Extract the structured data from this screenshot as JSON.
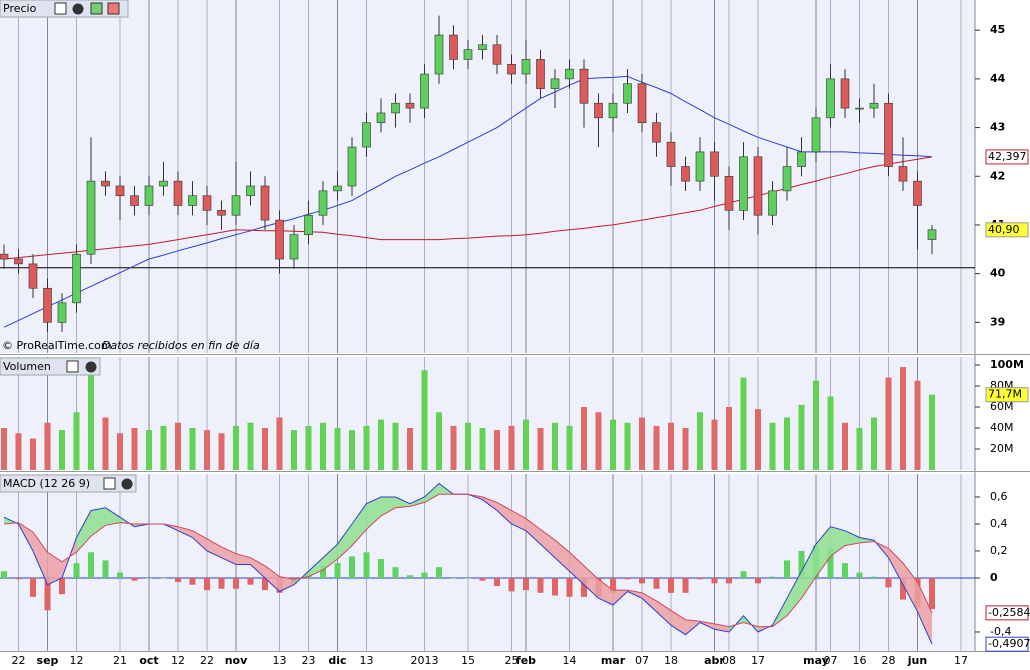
{
  "chart_data": [
    {
      "type": "candlestick",
      "title": "Precio",
      "note": "© ProRealTime.com",
      "subnote": "Datos recibidos en fin de día",
      "ylim": [
        38.37,
        45.62
      ],
      "yticks": [
        39,
        40,
        41,
        42,
        43,
        44,
        45
      ],
      "hline": 40.12,
      "up_color": "#5ccf5c",
      "down_color": "#dd5a5a",
      "open": [
        40.4,
        40.3,
        40.2,
        39.7,
        39.0,
        39.4,
        40.4,
        41.9,
        41.8,
        41.6,
        41.4,
        41.8,
        41.9,
        41.4,
        41.6,
        41.3,
        41.2,
        41.6,
        41.8,
        41.1,
        40.3,
        40.8,
        41.2,
        41.7,
        41.8,
        42.6,
        43.1,
        43.3,
        43.5,
        43.4,
        44.1,
        44.9,
        44.4,
        44.6,
        44.7,
        44.3,
        44.1,
        44.4,
        43.8,
        44.0,
        44.2,
        43.5,
        43.2,
        43.5,
        43.9,
        43.1,
        42.7,
        42.2,
        41.9,
        42.5,
        42.0,
        41.3,
        42.4,
        41.2,
        41.7,
        42.2,
        42.5,
        43.2,
        44.0,
        43.4,
        43.4,
        43.5,
        42.2,
        41.9,
        40.7
      ],
      "high": [
        40.6,
        40.5,
        40.4,
        39.9,
        39.6,
        40.6,
        42.8,
        42.1,
        42.0,
        41.8,
        42.0,
        42.3,
        42.1,
        41.9,
        41.8,
        41.5,
        42.3,
        42.1,
        42.0,
        41.3,
        41.0,
        41.5,
        41.9,
        42.1,
        42.8,
        43.3,
        43.6,
        43.7,
        43.7,
        44.3,
        45.3,
        45.1,
        44.8,
        44.9,
        44.9,
        44.5,
        44.8,
        44.6,
        44.2,
        44.4,
        44.4,
        43.7,
        43.7,
        44.2,
        44.1,
        43.3,
        42.9,
        42.4,
        42.8,
        42.7,
        42.2,
        42.7,
        42.6,
        41.9,
        42.6,
        42.8,
        43.4,
        44.3,
        44.2,
        43.6,
        43.9,
        43.7,
        42.8,
        42.1,
        41.0
      ],
      "low": [
        40.1,
        40.0,
        39.5,
        38.8,
        38.8,
        39.2,
        40.2,
        41.6,
        41.1,
        41.2,
        41.2,
        41.6,
        41.2,
        41.2,
        41.0,
        40.9,
        41.0,
        41.4,
        40.9,
        40.0,
        40.1,
        40.6,
        41.0,
        41.5,
        41.6,
        42.4,
        42.9,
        43.0,
        43.1,
        43.2,
        43.9,
        44.2,
        44.2,
        44.4,
        44.1,
        43.9,
        43.9,
        43.6,
        43.4,
        43.8,
        43.0,
        42.6,
        42.9,
        43.3,
        42.9,
        42.4,
        41.8,
        41.7,
        41.7,
        41.5,
        40.9,
        41.1,
        40.8,
        41.0,
        41.5,
        42.0,
        42.3,
        43.0,
        43.2,
        43.1,
        43.2,
        42.0,
        41.7,
        40.5,
        40.4
      ],
      "close": [
        40.3,
        40.2,
        39.7,
        39.0,
        39.4,
        40.4,
        41.9,
        41.8,
        41.6,
        41.4,
        41.8,
        41.9,
        41.4,
        41.6,
        41.3,
        41.2,
        41.6,
        41.8,
        41.1,
        40.3,
        40.8,
        41.2,
        41.7,
        41.8,
        42.6,
        43.1,
        43.3,
        43.5,
        43.4,
        44.1,
        44.9,
        44.4,
        44.6,
        44.7,
        44.3,
        44.1,
        44.4,
        43.8,
        44.0,
        44.2,
        43.5,
        43.2,
        43.5,
        43.9,
        43.1,
        42.7,
        42.2,
        41.9,
        42.5,
        42.0,
        41.3,
        42.4,
        41.2,
        41.7,
        42.2,
        42.5,
        43.2,
        44.0,
        43.4,
        43.4,
        43.5,
        42.2,
        41.9,
        41.4,
        40.9
      ],
      "lines": [
        {
          "color": "#2e3fcf",
          "values": [
            38.9,
            39.04,
            39.18,
            39.32,
            39.46,
            39.6,
            39.74,
            39.88,
            40.02,
            40.16,
            40.3,
            40.38,
            40.47,
            40.55,
            40.63,
            40.72,
            40.8,
            40.88,
            40.97,
            41.05,
            41.13,
            41.22,
            41.3,
            41.4,
            41.5,
            41.67,
            41.83,
            42.0,
            42.13,
            42.27,
            42.4,
            42.55,
            42.7,
            42.85,
            43.0,
            43.2,
            43.4,
            43.6,
            43.73,
            43.87,
            44.0,
            44.02,
            44.03,
            44.05,
            43.93,
            43.82,
            43.7,
            43.53,
            43.37,
            43.2,
            43.07,
            42.93,
            42.8,
            42.7,
            42.6,
            42.5,
            42.5,
            42.5,
            42.5,
            42.48,
            42.47,
            42.45,
            42.43,
            42.42,
            42.4
          ]
        },
        {
          "color": "#c41a2e",
          "values": [
            40.3,
            40.33,
            40.36,
            40.39,
            40.42,
            40.45,
            40.48,
            40.51,
            40.54,
            40.57,
            40.6,
            40.65,
            40.7,
            40.75,
            40.8,
            40.85,
            40.9,
            40.89,
            40.88,
            40.88,
            40.87,
            40.86,
            40.85,
            40.81,
            40.78,
            40.74,
            40.7,
            40.7,
            40.7,
            40.7,
            40.7,
            40.72,
            40.73,
            40.75,
            40.77,
            40.78,
            40.8,
            40.83,
            40.87,
            40.9,
            40.93,
            40.97,
            41.0,
            41.05,
            41.1,
            41.15,
            41.2,
            41.25,
            41.3,
            41.38,
            41.45,
            41.53,
            41.6,
            41.68,
            41.75,
            41.83,
            41.9,
            41.98,
            42.05,
            42.13,
            42.2,
            42.25,
            42.3,
            42.35,
            42.397
          ]
        }
      ],
      "end_labels": [
        {
          "value": 42.397,
          "label": "42,397",
          "color": "#c41a2e",
          "bg": "#ffffff"
        },
        {
          "value": 40.9,
          "label": "40,90",
          "color": "#000000",
          "bg": "#ffff33"
        }
      ]
    },
    {
      "type": "bar",
      "title": "Volumen",
      "ylim": [
        0,
        107.6
      ],
      "yticks": [
        {
          "value": 20,
          "label": "20M"
        },
        {
          "value": 40,
          "label": "40M"
        },
        {
          "value": 60,
          "label": "60M"
        },
        {
          "value": 80,
          "label": "80M"
        },
        {
          "value": 100,
          "label": "100M"
        }
      ],
      "up_color": "#62d252",
      "down_color": "#e06a6a",
      "values": [
        40,
        35,
        30,
        45,
        38,
        55,
        90,
        50,
        35,
        40,
        38,
        42,
        45,
        40,
        38,
        35,
        42,
        45,
        40,
        50,
        38,
        42,
        45,
        40,
        38,
        42,
        48,
        45,
        40,
        95,
        55,
        42,
        45,
        40,
        38,
        42,
        48,
        40,
        45,
        42,
        60,
        55,
        48,
        45,
        50,
        42,
        45,
        40,
        55,
        48,
        60,
        88,
        58,
        45,
        50,
        62,
        85,
        70,
        45,
        40,
        50,
        88,
        98,
        85,
        71.7
      ],
      "end_labels": [
        {
          "value": 71.7,
          "label": "71,7M",
          "color": "#000000",
          "bg": "#ffff33"
        }
      ]
    },
    {
      "type": "macd",
      "title": "MACD (12 26 9)",
      "ylim": [
        -0.541,
        0.77
      ],
      "yticks": [
        {
          "value": 0.6,
          "label": "0,6"
        },
        {
          "value": 0.4,
          "label": "0,4"
        },
        {
          "value": 0.2,
          "label": "0,2"
        },
        0,
        {
          "value": -0.4,
          "label": "-0,4"
        }
      ],
      "categories": [
        null,
        "22",
        null,
        "sep",
        null,
        "12",
        null,
        null,
        "21",
        null,
        "oct",
        null,
        "12",
        null,
        "22",
        null,
        "nov",
        null,
        null,
        "13",
        null,
        "23",
        null,
        "dic",
        null,
        "13",
        null,
        null,
        null,
        "2013",
        null,
        null,
        "15",
        null,
        null,
        "25",
        "feb",
        null,
        null,
        "14",
        null,
        null,
        "mar",
        null,
        "07",
        null,
        "18",
        null,
        null,
        "abr",
        "08",
        null,
        "17",
        null,
        null,
        null,
        "may",
        "07",
        null,
        "16",
        null,
        "28",
        null,
        "jun",
        null,
        null,
        "17"
      ],
      "series": [
        {
          "color": "#2e3fcf",
          "values": [
            0.45,
            0.4,
            0.2,
            -0.05,
            0.0,
            0.3,
            0.5,
            0.52,
            0.45,
            0.38,
            0.4,
            0.4,
            0.35,
            0.3,
            0.2,
            0.15,
            0.1,
            0.1,
            0.0,
            -0.1,
            -0.05,
            0.05,
            0.15,
            0.25,
            0.4,
            0.55,
            0.6,
            0.6,
            0.55,
            0.6,
            0.7,
            0.62,
            0.62,
            0.58,
            0.5,
            0.4,
            0.35,
            0.25,
            0.15,
            0.05,
            -0.05,
            -0.15,
            -0.2,
            -0.1,
            -0.15,
            -0.25,
            -0.35,
            -0.42,
            -0.33,
            -0.38,
            -0.4,
            -0.28,
            -0.4,
            -0.35,
            -0.15,
            0.05,
            0.25,
            0.38,
            0.35,
            0.3,
            0.28,
            0.15,
            -0.05,
            -0.25,
            -0.4907,
            null,
            null
          ]
        },
        {
          "color": "#d0485a",
          "values": [
            0.4,
            0.41,
            0.34,
            0.19,
            0.12,
            0.19,
            0.31,
            0.39,
            0.41,
            0.4,
            0.4,
            0.4,
            0.38,
            0.35,
            0.29,
            0.23,
            0.18,
            0.15,
            0.09,
            0.01,
            -0.01,
            0.01,
            0.06,
            0.14,
            0.24,
            0.36,
            0.46,
            0.52,
            0.53,
            0.56,
            0.62,
            0.62,
            0.62,
            0.6,
            0.56,
            0.5,
            0.44,
            0.36,
            0.28,
            0.19,
            0.09,
            -0.01,
            -0.09,
            -0.09,
            -0.11,
            -0.17,
            -0.24,
            -0.31,
            -0.32,
            -0.34,
            -0.36,
            -0.33,
            -0.36,
            -0.36,
            -0.28,
            -0.15,
            0.01,
            0.16,
            0.24,
            0.26,
            0.27,
            0.22,
            0.11,
            -0.03,
            -0.2584,
            null,
            null
          ]
        }
      ],
      "histogram": [
        0.05,
        -0.01,
        -0.14,
        -0.24,
        -0.12,
        0.11,
        0.19,
        0.13,
        0.04,
        -0.02,
        0.0,
        0.0,
        -0.03,
        -0.05,
        -0.09,
        -0.08,
        -0.08,
        -0.05,
        -0.09,
        -0.11,
        -0.04,
        0.04,
        0.09,
        0.11,
        0.16,
        0.19,
        0.14,
        0.08,
        0.02,
        0.04,
        0.08,
        0.0,
        0.0,
        -0.02,
        -0.06,
        -0.1,
        -0.09,
        -0.11,
        -0.13,
        -0.14,
        -0.14,
        -0.14,
        -0.11,
        -0.01,
        -0.04,
        -0.08,
        -0.11,
        -0.11,
        -0.01,
        -0.04,
        -0.04,
        0.05,
        -0.04,
        0.01,
        0.13,
        0.2,
        0.24,
        0.22,
        0.11,
        0.04,
        0.01,
        -0.07,
        -0.16,
        -0.22,
        -0.23,
        null,
        null
      ],
      "up_color": "#5fd35f",
      "down_color": "#e06464",
      "end_labels": [
        {
          "value": -0.2584,
          "label": "-0,2584",
          "color": "#c41a2e",
          "bg": "#ffffff"
        },
        {
          "value": -0.4907,
          "label": "-0,4907",
          "color": "#2e3fcf",
          "bg": "#ffffff"
        }
      ]
    }
  ]
}
